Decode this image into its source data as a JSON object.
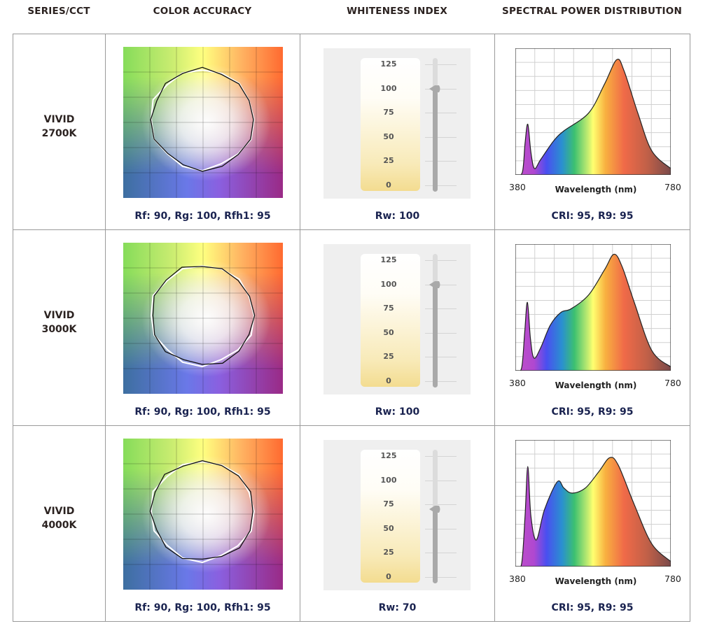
{
  "headers": [
    "SERIES/CCT",
    "COLOR ACCURACY",
    "WHITENESS INDEX",
    "SPECTRAL POWER DISTRIBUTION"
  ],
  "rows": [
    {
      "series": "VIVID",
      "cct": "2700K",
      "color_accuracy": "Rf: 90, Rg: 100, Rfh1: 95",
      "whiteness": "Rw: 100",
      "spectral": "CRI: 95, R9: 95"
    },
    {
      "series": "VIVID",
      "cct": "3000K",
      "color_accuracy": "Rf: 90, Rg: 100, Rfh1: 95",
      "whiteness": "Rw: 100",
      "spectral": "CRI: 95, R9: 95"
    },
    {
      "series": "VIVID",
      "cct": "4000K",
      "color_accuracy": "Rf: 90, Rg: 100, Rfh1: 95",
      "whiteness": "Rw: 70",
      "spectral": "CRI: 95, R9: 95"
    }
  ],
  "whiteness_scale": {
    "ticks": [
      "125",
      "100",
      "75",
      "50",
      "25",
      "0"
    ],
    "min": 0,
    "max": 125
  },
  "chart_data": [
    {
      "type": "area",
      "title": "SPECTRAL POWER DISTRIBUTION",
      "series_label": "VIVID 2700K",
      "xlabel": "Wavelength (nm)",
      "xlim": [
        380,
        780
      ],
      "x_tick_labels": [
        "380",
        "780"
      ],
      "ylim": [
        0,
        1
      ],
      "grid": true,
      "x": [
        380,
        398,
        405,
        412,
        420,
        429,
        445,
        479,
        506,
        569,
        610,
        641,
        660,
        695,
        731,
        780
      ],
      "y": [
        0,
        0.02,
        0.25,
        0.4,
        0.18,
        0.05,
        0.12,
        0.27,
        0.35,
        0.49,
        0.72,
        0.91,
        0.82,
        0.49,
        0.19,
        0.05
      ]
    },
    {
      "type": "area",
      "title": "SPECTRAL POWER DISTRIBUTION",
      "series_label": "VIVID 3000K",
      "xlabel": "Wavelength (nm)",
      "xlim": [
        380,
        780
      ],
      "x_tick_labels": [
        "380",
        "780"
      ],
      "ylim": [
        0,
        1
      ],
      "grid": true,
      "x": [
        380,
        396,
        404,
        411,
        419,
        428,
        445,
        470,
        497,
        524,
        569,
        610,
        634,
        655,
        686,
        731,
        780
      ],
      "y": [
        0,
        0.02,
        0.3,
        0.54,
        0.25,
        0.1,
        0.18,
        0.36,
        0.46,
        0.49,
        0.6,
        0.8,
        0.92,
        0.82,
        0.54,
        0.16,
        0.03
      ]
    },
    {
      "type": "area",
      "title": "SPECTRAL POWER DISTRIBUTION",
      "series_label": "VIVID 4000K",
      "xlabel": "Wavelength (nm)",
      "xlim": [
        380,
        780
      ],
      "x_tick_labels": [
        "380",
        "780"
      ],
      "ylim": [
        0,
        1
      ],
      "grid": true,
      "x": [
        380,
        396,
        405,
        412,
        420,
        434,
        455,
        488,
        505,
        526,
        560,
        595,
        623,
        645,
        686,
        731,
        780
      ],
      "y": [
        0,
        0.02,
        0.4,
        0.79,
        0.4,
        0.21,
        0.45,
        0.67,
        0.62,
        0.58,
        0.62,
        0.75,
        0.86,
        0.8,
        0.49,
        0.18,
        0.04
      ]
    }
  ],
  "whiteness_values": [
    100,
    100,
    70
  ]
}
